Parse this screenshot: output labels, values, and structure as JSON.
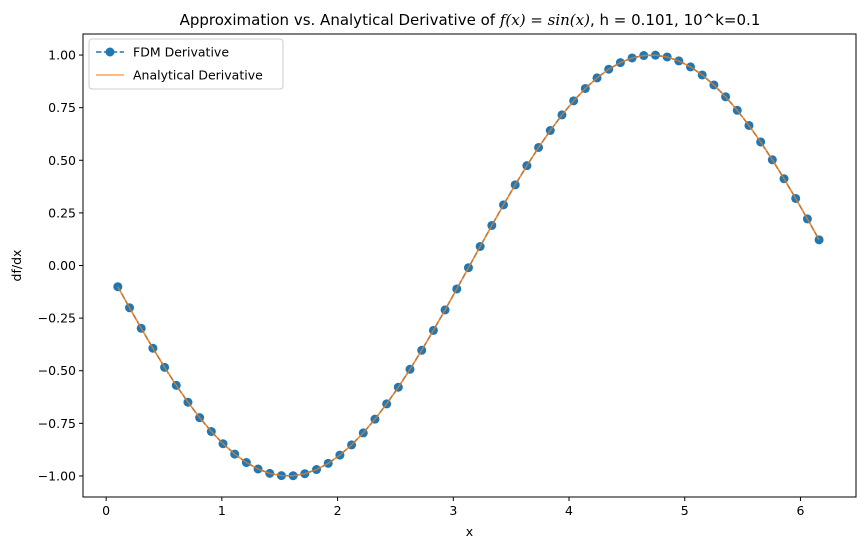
{
  "chart_data": {
    "type": "line",
    "title_prefix": "Approximation vs. Analytical Derivative of ",
    "title_math": "f(x) = sin(x)",
    "title_suffix": ", h = 0.101, 10^k=0.1",
    "xlabel": "x",
    "ylabel": "df/dx",
    "xlim": [
      -0.2,
      6.48
    ],
    "ylim": [
      -1.1,
      1.1
    ],
    "xticks": [
      0,
      1,
      2,
      3,
      4,
      5,
      6
    ],
    "xtick_labels": [
      "0",
      "1",
      "2",
      "3",
      "4",
      "5",
      "6"
    ],
    "yticks": [
      -1.0,
      -0.75,
      -0.5,
      -0.25,
      0.0,
      0.25,
      0.5,
      0.75,
      1.0
    ],
    "ytick_labels": [
      "−1.00",
      "−0.75",
      "−0.50",
      "−0.25",
      "0.00",
      "0.25",
      "0.50",
      "0.75",
      "1.00"
    ],
    "grid": false,
    "legend_position": "top-left",
    "series": [
      {
        "name": "FDM Derivative",
        "style": "dashed-with-markers",
        "color": "#1f77b4",
        "x_start": 0.101,
        "x_step": 0.101,
        "count": 61,
        "function": "-sin(x)"
      },
      {
        "name": "Analytical Derivative",
        "style": "solid",
        "color": "#ff7f0e",
        "x_start": 0.101,
        "x_step": 0.101,
        "count": 61,
        "function": "-sin(x)"
      }
    ]
  }
}
